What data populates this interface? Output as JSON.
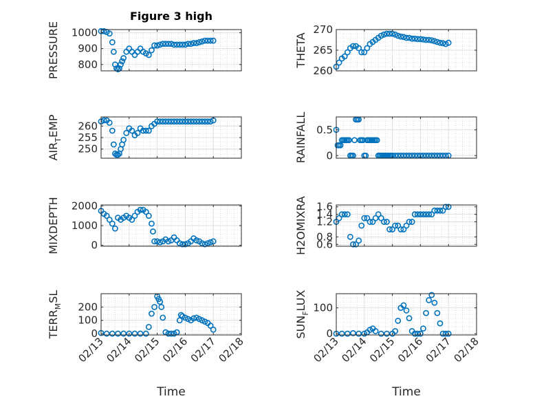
{
  "chart_data": [
    {
      "type": "scatter",
      "title": "Figure 3 high",
      "ylabel": "PRESSURE",
      "ylim": [
        760,
        1020
      ],
      "yticks": [
        800,
        900,
        1000
      ],
      "xlim": [
        "02/13",
        "02/18"
      ],
      "xticks": [
        "02/13",
        "02/14",
        "02/15",
        "02/16",
        "02/17",
        "02/18"
      ],
      "x_days": [
        0,
        0.1,
        0.2,
        0.3,
        0.4,
        0.45,
        0.5,
        0.55,
        0.6,
        0.65,
        0.7,
        0.75,
        0.8,
        0.9,
        1,
        1.1,
        1.2,
        1.3,
        1.4,
        1.5,
        1.6,
        1.7,
        1.8,
        1.9,
        2,
        2.1,
        2.2,
        2.3,
        2.4,
        2.5,
        2.6,
        2.7,
        2.8,
        2.9,
        3,
        3.1,
        3.2,
        3.3,
        3.4,
        3.5,
        3.6,
        3.7,
        3.8,
        3.9,
        4
      ],
      "values": [
        1010,
        1010,
        1005,
        995,
        940,
        880,
        800,
        775,
        770,
        775,
        800,
        820,
        840,
        880,
        900,
        880,
        860,
        880,
        900,
        880,
        870,
        860,
        890,
        920,
        920,
        925,
        930,
        930,
        930,
        930,
        925,
        925,
        925,
        925,
        925,
        930,
        930,
        935,
        935,
        940,
        945,
        950,
        950,
        950,
        950
      ]
    },
    {
      "type": "scatter",
      "ylabel": "THETA",
      "ylim": [
        260,
        270
      ],
      "yticks": [
        260,
        265,
        270
      ],
      "xlim": [
        "02/13",
        "02/18"
      ],
      "xticks": [
        "02/13",
        "02/14",
        "02/15",
        "02/16",
        "02/17",
        "02/18"
      ],
      "x_days": [
        0,
        0.1,
        0.2,
        0.3,
        0.4,
        0.5,
        0.6,
        0.7,
        0.8,
        0.9,
        1,
        1.1,
        1.2,
        1.3,
        1.4,
        1.5,
        1.6,
        1.7,
        1.8,
        1.9,
        2,
        2.1,
        2.2,
        2.3,
        2.4,
        2.5,
        2.6,
        2.7,
        2.8,
        2.9,
        3,
        3.1,
        3.2,
        3.3,
        3.4,
        3.5,
        3.6,
        3.7,
        3.8,
        3.9,
        4
      ],
      "values": [
        261,
        262,
        263,
        263.5,
        264.5,
        265.5,
        266,
        266,
        265.5,
        264.5,
        264.5,
        265.5,
        266.5,
        267,
        267.5,
        268,
        268.5,
        268.8,
        269,
        269,
        269,
        268.8,
        268.5,
        268.3,
        268.2,
        268,
        268,
        267.8,
        267.8,
        267.7,
        267.7,
        267.6,
        267.5,
        267.5,
        267.4,
        267.2,
        267,
        266.8,
        266.7,
        266.5,
        266.8
      ]
    },
    {
      "type": "scatter",
      "ylabel": "AIR_TEMP",
      "ylabel_display": {
        "base": "AIR",
        "sub": "T",
        "rest": "EMP"
      },
      "ylim": [
        246,
        264
      ],
      "yticks": [
        250,
        255,
        260
      ],
      "xlim": [
        "02/13",
        "02/18"
      ],
      "xticks": [
        "02/13",
        "02/14",
        "02/15",
        "02/16",
        "02/17",
        "02/18"
      ],
      "x_days": [
        0,
        0.1,
        0.2,
        0.3,
        0.4,
        0.45,
        0.5,
        0.55,
        0.6,
        0.65,
        0.7,
        0.75,
        0.8,
        0.9,
        1,
        1.1,
        1.2,
        1.3,
        1.4,
        1.5,
        1.6,
        1.7,
        1.8,
        1.9,
        2,
        2.1,
        2.2,
        2.3,
        2.4,
        2.5,
        2.6,
        2.7,
        2.8,
        2.9,
        3,
        3.1,
        3.2,
        3.3,
        3.4,
        3.5,
        3.6,
        3.7,
        3.8,
        3.9,
        4
      ],
      "values": [
        262,
        262.5,
        262.5,
        261.5,
        258,
        252,
        248,
        247.5,
        247.5,
        248,
        250,
        252,
        254,
        257,
        259,
        258,
        256,
        257,
        259,
        258,
        258,
        258,
        260,
        261,
        262,
        262,
        262,
        262,
        262,
        262,
        262,
        262,
        262,
        262,
        262,
        262,
        262,
        262,
        262,
        262,
        262,
        262,
        262,
        262,
        262.5
      ]
    },
    {
      "type": "scatter",
      "ylabel": "RAINFALL",
      "ylim": [
        -0.05,
        0.75
      ],
      "yticks": [
        0,
        0.5
      ],
      "ytick_labels": [
        "0",
        "0.5"
      ],
      "xlim": [
        "02/13",
        "02/18"
      ],
      "xticks": [
        "02/13",
        "02/14",
        "02/15",
        "02/16",
        "02/17",
        "02/18"
      ],
      "x_days": [
        0,
        0.05,
        0.1,
        0.15,
        0.2,
        0.25,
        0.3,
        0.35,
        0.4,
        0.45,
        0.5,
        0.55,
        0.6,
        0.65,
        0.7,
        0.75,
        0.8,
        0.85,
        0.9,
        0.95,
        1,
        1.05,
        1.1,
        1.15,
        1.2,
        1.25,
        1.3,
        1.35,
        1.4,
        1.45,
        1.5,
        1.55,
        1.6,
        1.65,
        1.7,
        1.75,
        1.8,
        1.85,
        1.9,
        1.95,
        2,
        2.1,
        2.2,
        2.3,
        2.4,
        2.5,
        2.6,
        2.7,
        2.8,
        2.9,
        3,
        3.1,
        3.2,
        3.3,
        3.4,
        3.5,
        3.6,
        3.7,
        3.8,
        3.9,
        4
      ],
      "values": [
        0.5,
        0.2,
        0.2,
        0.2,
        0.3,
        0.3,
        0.3,
        0.3,
        0.3,
        0.3,
        0,
        0,
        0,
        0.3,
        0.7,
        0.7,
        0.7,
        0.3,
        0.3,
        0.3,
        0,
        0,
        0.3,
        0.3,
        0.3,
        0.3,
        0.3,
        0.3,
        0.3,
        0.3,
        0,
        0,
        0,
        0,
        0,
        0,
        0,
        0,
        0,
        0,
        0,
        0,
        0,
        0,
        0,
        0,
        0,
        0,
        0,
        0,
        0,
        0,
        0,
        0,
        0,
        0,
        0,
        0,
        0,
        0,
        0
      ]
    },
    {
      "type": "scatter",
      "ylabel": "MIXDEPTH",
      "ylim": [
        -50,
        2050
      ],
      "yticks": [
        0,
        1000,
        2000
      ],
      "xlim": [
        "02/13",
        "02/18"
      ],
      "xticks": [
        "02/13",
        "02/14",
        "02/15",
        "02/16",
        "02/17",
        "02/18"
      ],
      "x_days": [
        0,
        0.1,
        0.2,
        0.3,
        0.4,
        0.5,
        0.6,
        0.7,
        0.8,
        0.9,
        1,
        1.1,
        1.2,
        1.3,
        1.4,
        1.5,
        1.6,
        1.7,
        1.8,
        1.85,
        1.9,
        2,
        2.1,
        2.2,
        2.3,
        2.4,
        2.5,
        2.6,
        2.7,
        2.8,
        2.9,
        3,
        3.1,
        3.2,
        3.3,
        3.4,
        3.5,
        3.6,
        3.7,
        3.8,
        3.9,
        4
      ],
      "values": [
        1750,
        1600,
        1500,
        1300,
        1100,
        850,
        1400,
        1300,
        1400,
        1500,
        1400,
        1300,
        1500,
        1700,
        1800,
        1800,
        1700,
        1500,
        1100,
        700,
        200,
        200,
        150,
        200,
        300,
        200,
        250,
        400,
        250,
        100,
        50,
        50,
        100,
        200,
        350,
        250,
        200,
        100,
        50,
        100,
        150,
        200
      ]
    },
    {
      "type": "scatter",
      "ylabel": "H2OMIXRA",
      "ylim": [
        0.55,
        1.65
      ],
      "yticks": [
        0.6,
        0.8,
        1.2,
        1.4,
        1.6
      ],
      "ytick_labels": [
        "0.6",
        "0.8",
        "1.2",
        "1.4",
        "1.6"
      ],
      "xlim": [
        "02/13",
        "02/18"
      ],
      "xticks": [
        "02/13",
        "02/14",
        "02/15",
        "02/16",
        "02/17",
        "02/18"
      ],
      "x_days": [
        0,
        0.1,
        0.2,
        0.3,
        0.4,
        0.5,
        0.6,
        0.7,
        0.8,
        0.9,
        1,
        1.1,
        1.2,
        1.3,
        1.4,
        1.5,
        1.6,
        1.7,
        1.8,
        1.9,
        2,
        2.1,
        2.2,
        2.3,
        2.4,
        2.5,
        2.6,
        2.7,
        2.8,
        2.9,
        3,
        3.1,
        3.2,
        3.3,
        3.4,
        3.5,
        3.6,
        3.7,
        3.8,
        3.9,
        4
      ],
      "values": [
        1.2,
        1.3,
        1.4,
        1.4,
        1.4,
        0.8,
        0.6,
        0.6,
        0.7,
        1.1,
        1.3,
        1.3,
        1.2,
        1.2,
        1.3,
        1.4,
        1.3,
        1.2,
        1.2,
        1.0,
        1.0,
        1.1,
        1.1,
        1.0,
        1.0,
        1.1,
        1.2,
        1.2,
        1.4,
        1.4,
        1.4,
        1.4,
        1.4,
        1.4,
        1.4,
        1.5,
        1.5,
        1.5,
        1.5,
        1.6,
        1.6
      ]
    },
    {
      "type": "scatter",
      "ylabel": "TERR_MSL",
      "ylabel_display": {
        "base": "TERR",
        "sub": "M",
        "rest": "SL"
      },
      "ylim": [
        -10,
        300
      ],
      "yticks": [
        0,
        100,
        200
      ],
      "xlim": [
        "02/13",
        "02/18"
      ],
      "xticks": [
        "02/13",
        "02/14",
        "02/15",
        "02/16",
        "02/17",
        "02/18"
      ],
      "x_days": [
        0,
        0.2,
        0.4,
        0.6,
        0.8,
        1,
        1.2,
        1.4,
        1.6,
        1.7,
        1.8,
        1.9,
        2,
        2.05,
        2.1,
        2.15,
        2.2,
        2.3,
        2.4,
        2.5,
        2.6,
        2.7,
        2.8,
        2.85,
        2.9,
        3,
        3.1,
        3.2,
        3.3,
        3.4,
        3.5,
        3.6,
        3.7,
        3.8,
        3.9,
        4
      ],
      "values": [
        5,
        0,
        0,
        0,
        0,
        0,
        0,
        0,
        0,
        50,
        150,
        200,
        280,
        260,
        240,
        200,
        120,
        10,
        0,
        0,
        0,
        10,
        100,
        140,
        130,
        120,
        110,
        100,
        115,
        120,
        110,
        100,
        90,
        80,
        60,
        30
      ]
    },
    {
      "type": "scatter",
      "ylabel": "SUN_FLUX",
      "ylabel_display": {
        "base": "SUN",
        "sub": "F",
        "rest": "LUX"
      },
      "ylim": [
        -5,
        155
      ],
      "yticks": [
        0,
        100
      ],
      "xlim": [
        "02/13",
        "02/18"
      ],
      "xticks": [
        "02/13",
        "02/14",
        "02/15",
        "02/16",
        "02/17",
        "02/18"
      ],
      "x_days": [
        0,
        0.2,
        0.4,
        0.6,
        0.8,
        1,
        1.1,
        1.2,
        1.3,
        1.4,
        1.6,
        1.8,
        2,
        2.1,
        2.2,
        2.3,
        2.4,
        2.5,
        2.6,
        2.7,
        2.8,
        2.9,
        3,
        3.1,
        3.2,
        3.3,
        3.4,
        3.5,
        3.6,
        3.7,
        3.8,
        3.9,
        4
      ],
      "values": [
        0,
        0,
        0,
        2,
        0,
        0,
        5,
        15,
        20,
        10,
        0,
        0,
        0,
        10,
        50,
        100,
        110,
        90,
        60,
        10,
        0,
        0,
        0,
        20,
        80,
        130,
        150,
        120,
        80,
        40,
        0,
        0,
        0
      ]
    }
  ],
  "xlabel": "Time",
  "colors": {
    "marker": "#0072bd",
    "axis": "#262626",
    "grid": "#d9d9d9"
  }
}
